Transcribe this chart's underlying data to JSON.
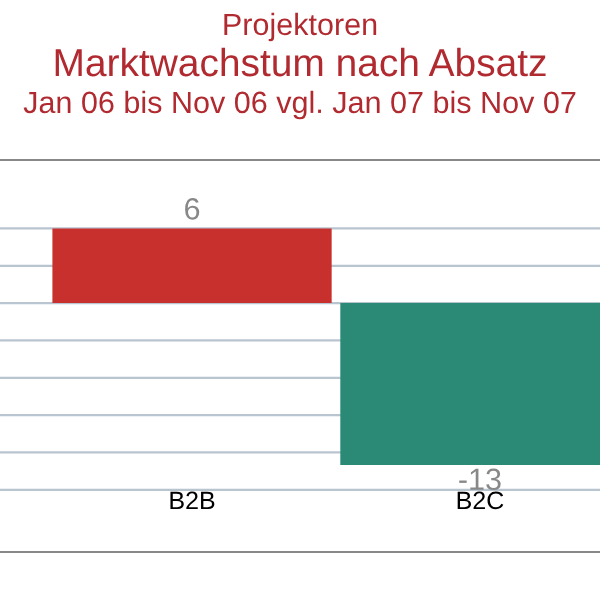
{
  "chart_data": {
    "type": "bar",
    "title": "Projektoren",
    "subtitle": "Marktwachstum nach Absatz\nJan 06 bis Nov 06 vgl. Jan 07 bis Nov 07",
    "categories": [
      "B2B",
      "B2C"
    ],
    "values": [
      6,
      -13
    ],
    "colors": [
      "#c8302e",
      "#2a8a76"
    ],
    "data_labels": true,
    "ylim": [
      -20,
      11.5
    ],
    "yticks": [
      {
        "value": 6,
        "label": null
      },
      {
        "value": 3,
        "label": null
      },
      {
        "value": 0,
        "label": null
      },
      {
        "value": -3,
        "label": null
      },
      {
        "value": -6,
        "label": null
      },
      {
        "value": -9,
        "label": null
      },
      {
        "value": -12,
        "label": null
      },
      {
        "value": -15,
        "label": null
      }
    ],
    "grid": "y"
  }
}
